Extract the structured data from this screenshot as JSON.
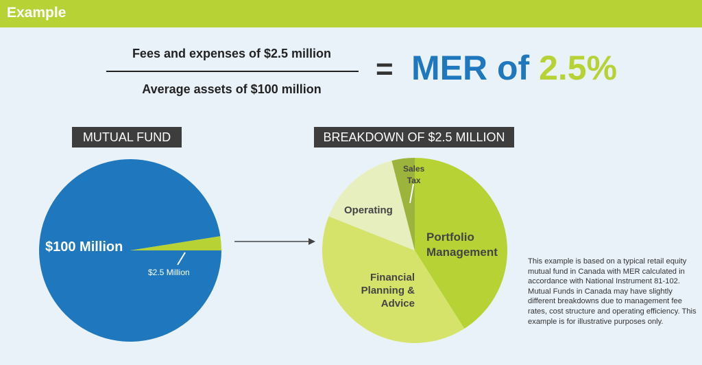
{
  "header": {
    "title": "Example"
  },
  "formula": {
    "numerator": "Fees and expenses of $2.5 million",
    "denominator": "Average assets of $100 million",
    "equals": "=",
    "result_prefix": "MER of ",
    "result_value": "2.5%"
  },
  "colors": {
    "blue": "#1f78be",
    "green": "#b6d234",
    "header": "#b6d234",
    "tag": "#3d3d3d"
  },
  "chart_data": [
    {
      "type": "pie",
      "title": "MUTUAL FUND",
      "unit": "$ million",
      "slices": [
        {
          "label": "$100 Million",
          "value": 97.5,
          "color": "#1f78be"
        },
        {
          "label": "$2.5 Million",
          "value": 2.5,
          "color": "#b6d234"
        }
      ]
    },
    {
      "type": "pie",
      "title": "BREAKDOWN OF $2.5 MILLION",
      "unit": "percent (estimated)",
      "slices": [
        {
          "label": "Portfolio Management",
          "value": 41,
          "color": "#b6d234"
        },
        {
          "label": "Financial Planning & Advice",
          "value": 40,
          "color": "#d6e36b"
        },
        {
          "label": "Operating",
          "value": 15,
          "color": "#e8efbf"
        },
        {
          "label": "Sales Tax",
          "value": 4,
          "color": "#9cb43c"
        }
      ]
    }
  ],
  "labels": {
    "left_main": "$100 Million",
    "left_small": "$2.5 Million",
    "portfolio_1": "Portfolio",
    "portfolio_2": "Management",
    "fin_1": "Financial",
    "fin_2": "Planning &",
    "fin_3": "Advice",
    "operating": "Operating",
    "sales_1": "Sales",
    "sales_2": "Tax"
  },
  "note": "This example is based on a typical retail equity mutual fund in Canada with MER calculated in accordance with National Instrument 81-102. Mutual Funds in Canada may have slightly different breakdowns due to management fee rates, cost structure and operating efficiency. This example is for illustrative purposes only."
}
